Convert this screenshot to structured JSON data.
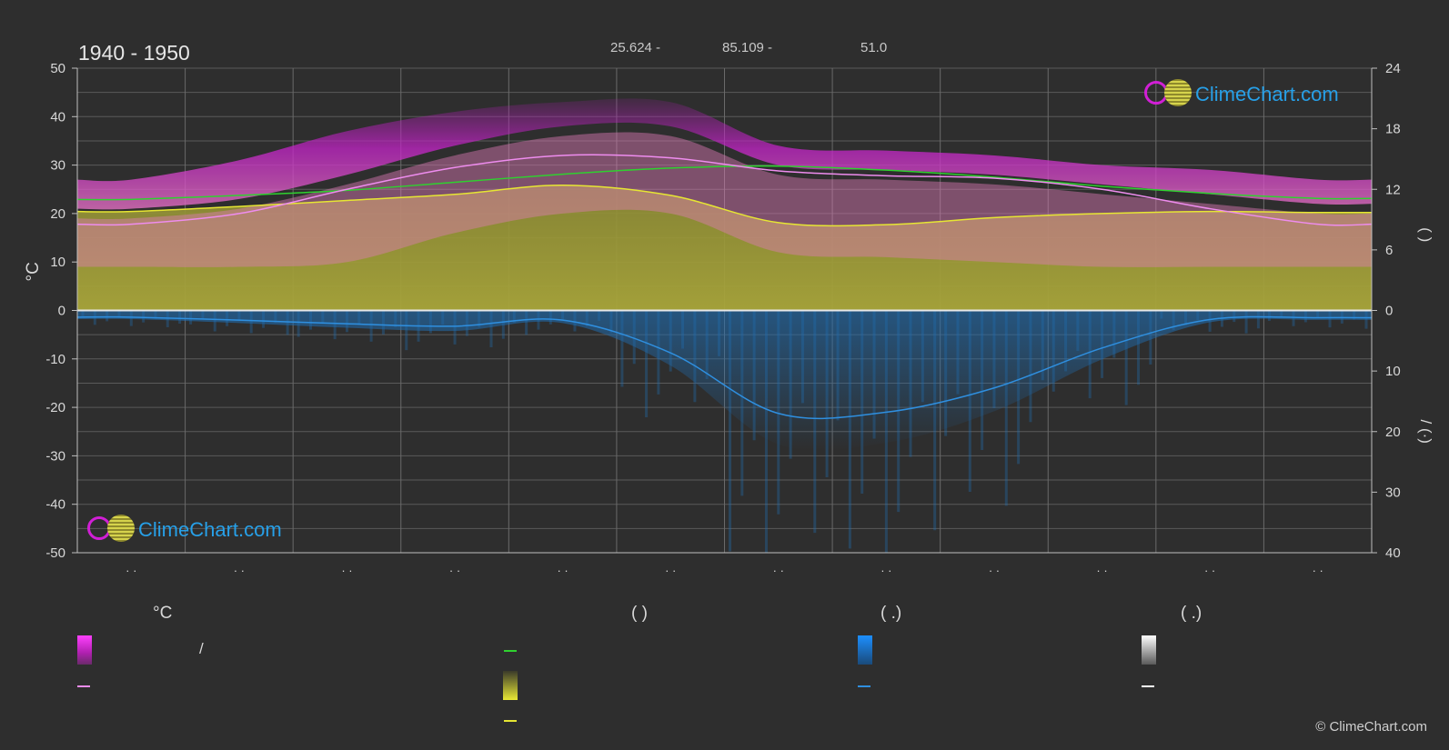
{
  "header": {
    "title": "1940 - 1950",
    "stats": [
      "25.624 -",
      "85.109 -",
      "51.0"
    ]
  },
  "logo_text": "ClimeChart.com",
  "copyright": "© ClimeChart.com",
  "colors": {
    "background": "#2e2e2e",
    "daylight": "#2fd12f",
    "sunshine": "#e6e633",
    "max_temp_band": "#e83de8",
    "mean_temp": "#ee8cee",
    "precip": "#2f8fdf",
    "snow": "#ffffff"
  },
  "chart_data": {
    "type": "line",
    "left_axis": {
      "label": "°C",
      "range": [
        -50,
        50
      ],
      "ticks": [
        "50",
        "40",
        "30",
        "20",
        "10",
        "0",
        "-10",
        "-20",
        "-30",
        "-40",
        "-50"
      ]
    },
    "right_axis_top": {
      "range": [
        0,
        24
      ],
      "ticks": [
        "24",
        "18",
        "12",
        "6",
        "0"
      ],
      "label_glyphs": "(   )"
    },
    "right_axis_bottom": {
      "range": [
        0,
        40
      ],
      "ticks": [
        "0",
        "10",
        "20",
        "30",
        "40"
      ],
      "label_glyphs": "/ (·)"
    },
    "month_labels": [
      "· ·",
      "· ·",
      "· ·",
      "· ·",
      "· ·",
      "· ·",
      "· ·",
      "· ·",
      "· ·",
      "· ·",
      "· ·",
      "· ·"
    ],
    "grid": true,
    "series": [
      {
        "key": "daylight_hours",
        "axis": "hours",
        "values": [
          11.0,
          11.4,
          11.9,
          12.7,
          13.5,
          14.1,
          14.3,
          13.9,
          13.2,
          12.3,
          11.6,
          11.1
        ]
      },
      {
        "key": "sunshine_hours",
        "axis": "hours",
        "values": [
          9.8,
          10.3,
          10.9,
          11.5,
          12.4,
          11.4,
          8.7,
          8.5,
          9.2,
          9.6,
          9.8,
          9.7
        ]
      },
      {
        "key": "mean_temp_line",
        "axis": "celsius",
        "values": [
          17.8,
          20.0,
          25.0,
          29.5,
          32.0,
          31.5,
          28.8,
          27.8,
          27.3,
          25.0,
          21.0,
          17.8
        ]
      },
      {
        "key": "precipitation_mm",
        "axis": "mm",
        "values": [
          1.1,
          1.6,
          2.2,
          2.6,
          1.6,
          7.0,
          17.0,
          16.8,
          12.8,
          6.2,
          1.5,
          1.2
        ]
      }
    ],
    "bands": [
      {
        "key": "temp_max_band",
        "min": [
          21,
          23,
          28,
          34,
          38,
          38,
          30,
          29,
          28,
          26,
          24,
          22
        ],
        "max": [
          27,
          31,
          37,
          41,
          43,
          43,
          34,
          33,
          32,
          30,
          29,
          27
        ]
      }
    ]
  },
  "legend": {
    "headers": [
      "°C",
      "(          )",
      "(   .)",
      "(   .)"
    ],
    "slash": "/"
  }
}
